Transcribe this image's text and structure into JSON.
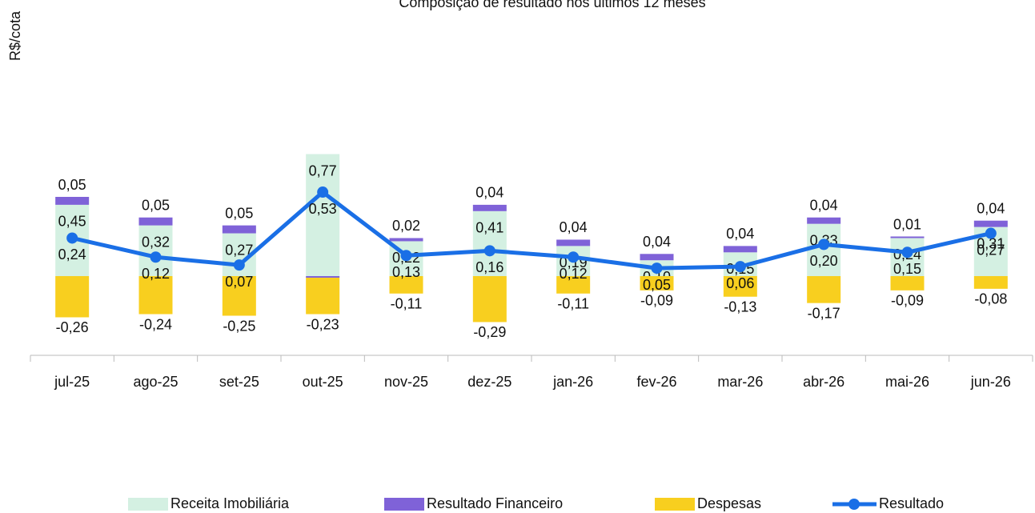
{
  "chart_data": {
    "type": "bar",
    "stacked": true,
    "title": "Composição de resultado nos últimos 12 meses",
    "y_label": "R$/cota",
    "categories": [
      "jul-25",
      "ago-25",
      "set-25",
      "out-25",
      "nov-25",
      "dez-25",
      "jan-26",
      "fev-26",
      "mar-26",
      "abr-26",
      "mai-26",
      "jun-26"
    ],
    "ylim": [
      -0.5,
      1.7
    ],
    "legend": "bottom",
    "series": [
      {
        "name": "Receita Imobiliária",
        "type": "bar",
        "color": "#d4f0e2",
        "values": [
          0.45,
          0.32,
          0.27,
          0.77,
          0.22,
          0.41,
          0.19,
          0.1,
          0.15,
          0.33,
          0.24,
          0.31
        ],
        "value_labels": [
          "0,45",
          "0,32",
          "0,27",
          "0,77",
          "0,22",
          "0,41",
          "0,19",
          "0,10",
          "0,15",
          "0,33",
          "0,24",
          "0,31"
        ]
      },
      {
        "name": "Resultado Financeiro",
        "type": "bar",
        "color": "#7f62d8",
        "values": [
          0.05,
          0.05,
          0.05,
          -0.01,
          0.02,
          0.04,
          0.04,
          0.04,
          0.04,
          0.04,
          0.01,
          0.04
        ],
        "value_labels": [
          "0,05",
          "0,05",
          "0,05",
          "-0,01",
          "0,02",
          "0,04",
          "0,04",
          "0,04",
          "0,04",
          "0,04",
          "0,01",
          "0,04"
        ]
      },
      {
        "name": "Despesas",
        "type": "bar",
        "color": "#f8cf1f",
        "values": [
          -0.26,
          -0.24,
          -0.25,
          -0.23,
          -0.11,
          -0.29,
          -0.11,
          -0.09,
          -0.13,
          -0.17,
          -0.09,
          -0.08
        ],
        "value_labels": [
          "-0,26",
          "-0,24",
          "-0,25",
          "-0,23",
          "-0,11",
          "-0,29",
          "-0,11",
          "-0,09",
          "-0,13",
          "-0,17",
          "-0,09",
          "-0,08"
        ]
      },
      {
        "name": "Resultado",
        "type": "line",
        "color": "#1a6fe6",
        "values": [
          0.24,
          0.12,
          0.07,
          0.53,
          0.13,
          0.16,
          0.12,
          0.05,
          0.06,
          0.2,
          0.15,
          0.27
        ],
        "value_labels": [
          "0,24",
          "0,12",
          "0,07",
          "0,53",
          "0,13",
          "0,16",
          "0,12",
          "0,05",
          "0,06",
          "0,20",
          "0,15",
          "0,27"
        ]
      }
    ]
  }
}
